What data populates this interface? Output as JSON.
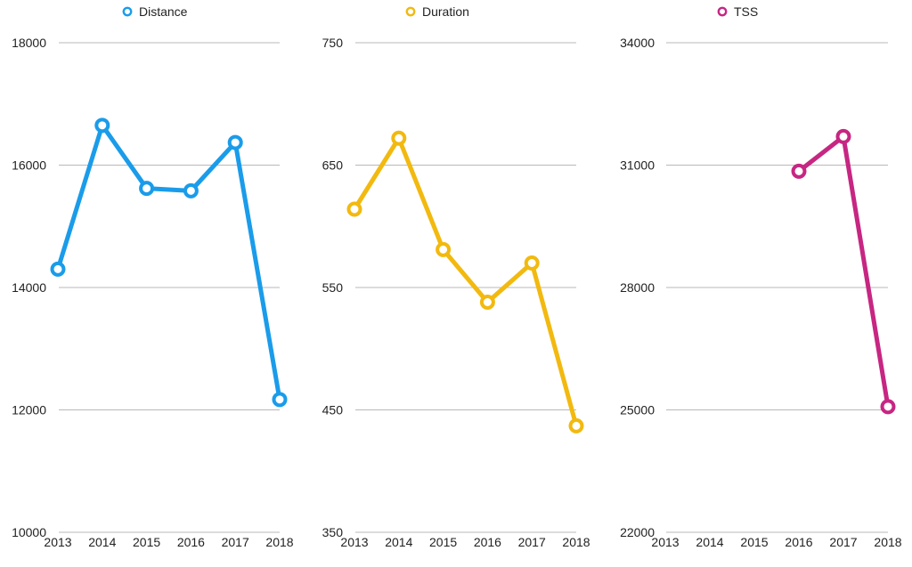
{
  "chart_data": [
    {
      "type": "line",
      "color": "#1a9cea",
      "x": [
        "2013",
        "2014",
        "2015",
        "2016",
        "2017",
        "2018"
      ],
      "series": [
        {
          "name": "Distance",
          "values": [
            14300,
            16650,
            15620,
            15580,
            16370,
            12170
          ]
        }
      ],
      "ylim": [
        10000,
        18000
      ],
      "yticks": [
        "10000",
        "12000",
        "14000",
        "16000",
        "18000"
      ],
      "grid": true,
      "legend": "top-center"
    },
    {
      "type": "line",
      "color": "#f2b90f",
      "x": [
        "2013",
        "2014",
        "2015",
        "2016",
        "2017",
        "2018"
      ],
      "series": [
        {
          "name": "Duration",
          "values": [
            614,
            672,
            581,
            538,
            570,
            437
          ]
        }
      ],
      "ylim": [
        350,
        750
      ],
      "yticks": [
        "350",
        "450",
        "550",
        "650",
        "750"
      ],
      "grid": true,
      "legend": "top-center"
    },
    {
      "type": "line",
      "color": "#c72682",
      "x": [
        "2013",
        "2014",
        "2015",
        "2016",
        "2017",
        "2018"
      ],
      "series": [
        {
          "name": "TSS",
          "values": [
            null,
            null,
            null,
            30850,
            31700,
            25080
          ]
        }
      ],
      "ylim": [
        22000,
        34000
      ],
      "yticks": [
        "22000",
        "25000",
        "28000",
        "31000",
        "34000"
      ],
      "grid": true,
      "legend": "top-center"
    }
  ]
}
